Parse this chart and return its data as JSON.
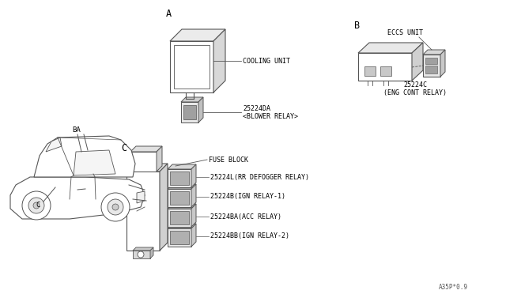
{
  "bg_color": "#ffffff",
  "line_color": "#555555",
  "footer": "A35P*0.9",
  "labels": {
    "cooling_unit": "COOLING UNIT",
    "blower_relay_num": "25224DA",
    "blower_relay": "<BLOWER RELAY>",
    "eccs_unit": "ECCS UNIT",
    "eng_cont_num": "25224C",
    "eng_cont_relay": "(ENG CONT RELAY)",
    "fuse_block": "FUSE BLOCK",
    "rr_defogger_num": "25224L(RR DEFOGGER RELAY)",
    "ign_relay1_num": "25224B(IGN RELAY-1)",
    "acc_relay_num": "25224BA(ACC RELAY)",
    "ign_relay2_num": "25224BB(IGN RELAY-2)"
  },
  "font_size": 6.0,
  "font_size_section": 8.5
}
